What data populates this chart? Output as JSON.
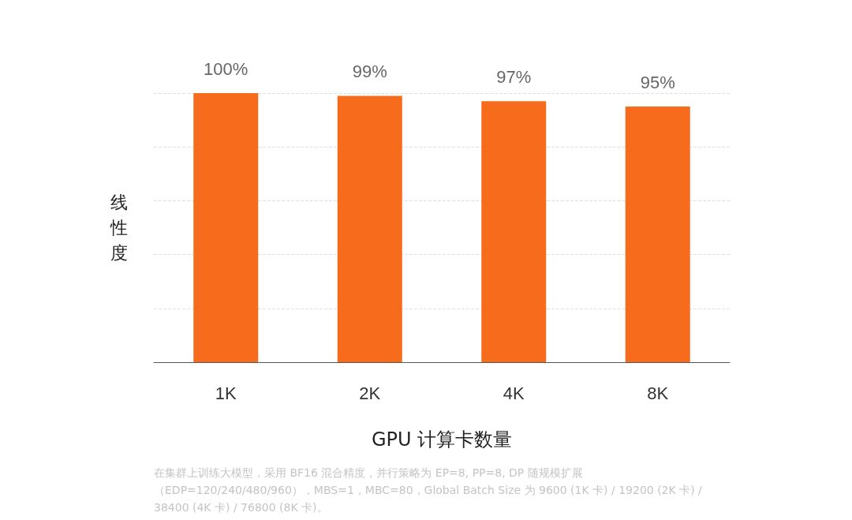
{
  "chart_data": {
    "type": "bar",
    "xlabel": "GPU 计算卡数量",
    "ylabel": "线性度",
    "categories": [
      "1K",
      "2K",
      "4K",
      "8K"
    ],
    "values": [
      100,
      99,
      97,
      95
    ],
    "value_labels": [
      "100%",
      "99%",
      "97%",
      "95%"
    ],
    "color": "#f76b1c",
    "ylim": [
      0,
      100
    ],
    "yticks": [
      {
        "value": 0,
        "label": null
      },
      {
        "value": 20,
        "label": null
      },
      {
        "value": 40,
        "label": null
      },
      {
        "value": 60,
        "label": null
      },
      {
        "value": 80,
        "label": null
      },
      {
        "value": 100,
        "label": null
      }
    ],
    "grid": "y",
    "tick_labels": "x",
    "annotations": [
      "在集群上训练大模型，采用 BF16 混合精度，并行策略为 EP=8, PP=8, DP 随规模扩展（EDP=120/240/480/960），MBS=1，MBC=80，Global Batch Size 为 9600 (1K 卡) / 19200 (2K 卡) / 38400 (4K 卡) / 76800 (8K 卡)。"
    ]
  }
}
